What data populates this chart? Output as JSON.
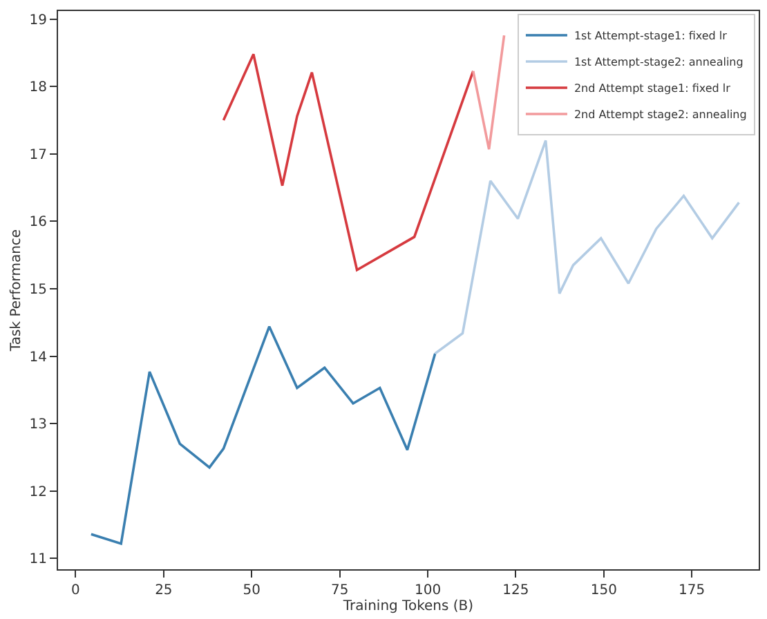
{
  "chart_data": {
    "type": "line",
    "xlabel": "Training Tokens (B)",
    "ylabel": "Task Performance",
    "xlim": [
      -5,
      194
    ],
    "xticks": [
      0,
      25,
      50,
      75,
      100,
      125,
      150,
      175
    ],
    "ylim": [
      10.84,
      19.12
    ],
    "yticks": [
      11,
      12,
      13,
      14,
      15,
      16,
      17,
      18,
      19
    ],
    "legend": "top right",
    "marker": "none",
    "line_style": "solid",
    "series": [
      {
        "name": "1st Attempt-stage1: fixed lr",
        "color": "#3a7fb0",
        "x": [
          4.4,
          12.9,
          21,
          29.6,
          38,
          42,
          55,
          62.9,
          70.7,
          78.8,
          86.4,
          94.2,
          102.1
        ],
        "values": [
          11.36,
          11.22,
          13.77,
          12.7,
          12.35,
          12.63,
          14.44,
          13.53,
          13.83,
          13.3,
          13.53,
          12.61,
          14.04
        ]
      },
      {
        "name": "1st Attempt-stage2: annealing",
        "color": "#b3cce4",
        "x": [
          102.1,
          109.9,
          117.8,
          125.6,
          133.5,
          137.4,
          141.3,
          149.2,
          157,
          164.9,
          172.7,
          180.8,
          188.4
        ],
        "values": [
          14.04,
          14.34,
          16.6,
          16.04,
          17.2,
          14.93,
          15.35,
          15.75,
          15.08,
          15.89,
          16.38,
          15.75,
          16.28
        ]
      },
      {
        "name": "2nd Attempt stage1: fixed lr",
        "color": "#d63a3f",
        "x": [
          42,
          50.5,
          58.7,
          62.9,
          67.1,
          79.9,
          96.2,
          112.9
        ],
        "values": [
          17.5,
          18.48,
          16.53,
          17.56,
          18.21,
          15.28,
          15.77,
          18.23
        ]
      },
      {
        "name": "2nd Attempt stage2: annealing",
        "color": "#f29a9c",
        "x": [
          112.9,
          117.4,
          121.7
        ],
        "values": [
          18.23,
          17.07,
          18.76
        ]
      }
    ]
  }
}
